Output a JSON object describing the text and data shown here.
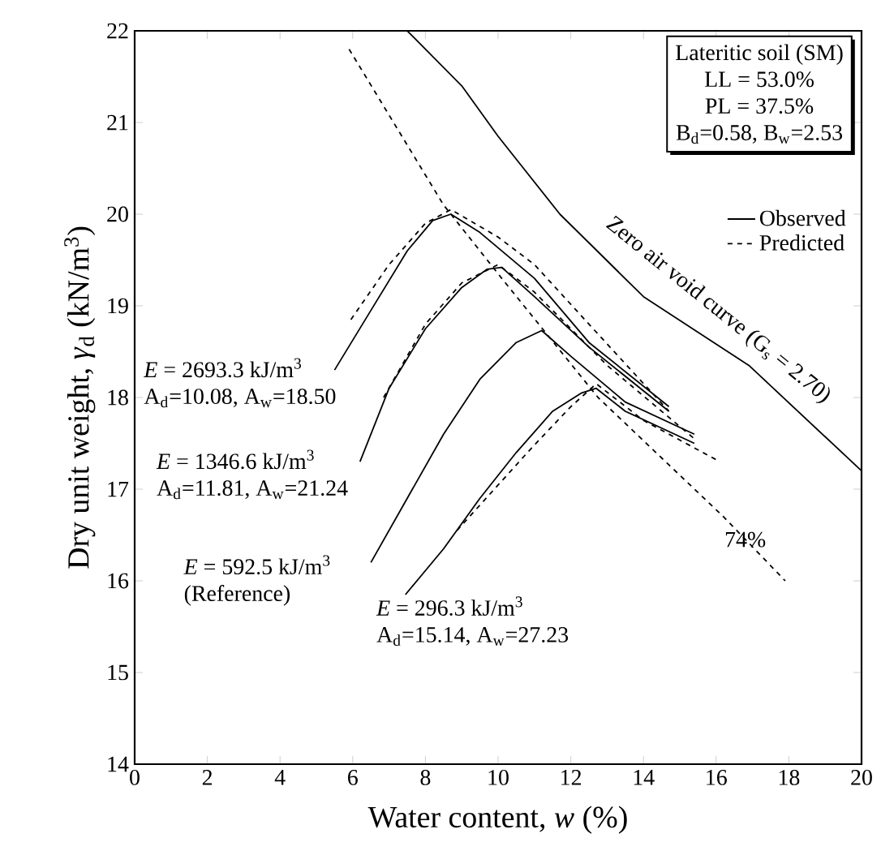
{
  "chart_data": {
    "type": "line",
    "xlabel": "Water content, *w* (%)",
    "ylabel": "Dry unit weight, *γ*$_{d}$ (kN/m$^{3}$)",
    "xlim": [
      0,
      20
    ],
    "ylim": [
      14,
      22
    ],
    "xticks": [
      0,
      2,
      4,
      6,
      8,
      10,
      12,
      14,
      16,
      18,
      20
    ],
    "yticks": [
      14,
      15,
      16,
      17,
      18,
      19,
      20,
      21,
      22
    ],
    "legend": "top right",
    "series": [
      {
        "color": "#000000",
        "line_style": "solid",
        "x": [
          7.5,
          9,
          10,
          11.7,
          14,
          16.9,
          20
        ],
        "values": [
          22.0,
          21.4,
          20.85,
          20.0,
          19.1,
          18.35,
          17.2
        ]
      },
      {
        "color": "#000000",
        "line_style": "dashed",
        "x": [
          5.9,
          8.5,
          10.1,
          12.75,
          16.2,
          17.9
        ],
        "values": [
          21.8,
          20.1,
          19.3,
          18.0,
          16.7,
          16.0
        ]
      },
      {
        "name": "Observed",
        "color": "#000000",
        "line_style": "solid",
        "x": [
          5.5,
          6.5,
          7.5,
          8.2,
          8.7,
          9.5,
          11,
          12.5,
          14.7
        ],
        "values": [
          18.3,
          18.95,
          19.6,
          19.93,
          20.0,
          19.8,
          19.3,
          18.6,
          17.9
        ]
      },
      {
        "color": "#000000",
        "line_style": "solid",
        "x": [
          6.2,
          7,
          8,
          9,
          9.7,
          10.1,
          11,
          12.5,
          14.7
        ],
        "values": [
          17.3,
          18.1,
          18.75,
          19.2,
          19.4,
          19.42,
          19.1,
          18.55,
          17.85
        ]
      },
      {
        "color": "#000000",
        "line_style": "solid",
        "x": [
          6.5,
          7.5,
          8.5,
          9.5,
          10.5,
          11.2,
          12,
          13.5,
          15.4
        ],
        "values": [
          16.2,
          16.9,
          17.6,
          18.2,
          18.6,
          18.73,
          18.45,
          17.95,
          17.6
        ]
      },
      {
        "color": "#000000",
        "line_style": "solid",
        "x": [
          7.45,
          8.5,
          9.5,
          10.5,
          11.5,
          12.3,
          12.7,
          13.5,
          15.4
        ],
        "values": [
          15.85,
          16.35,
          16.9,
          17.4,
          17.85,
          18.05,
          18.1,
          17.85,
          17.5
        ]
      },
      {
        "name": "Predicted",
        "color": "#000000",
        "line_style": "dashed",
        "x": [
          5.95,
          7,
          8,
          8.7,
          10,
          11,
          12.5,
          14.7
        ],
        "values": [
          18.85,
          19.45,
          19.9,
          20.05,
          19.75,
          19.45,
          18.8,
          17.85
        ]
      },
      {
        "color": "#000000",
        "line_style": "dashed",
        "x": [
          6.85,
          8,
          9,
          10,
          11,
          13,
          15.4
        ],
        "values": [
          18.0,
          18.8,
          19.25,
          19.45,
          19.15,
          18.35,
          17.55
        ]
      },
      {
        "color": "#000000",
        "line_style": "dashed",
        "x": [
          8.87,
          10.9,
          12.0,
          12.7,
          14,
          16.1
        ],
        "values": [
          16.55,
          17.44,
          17.9,
          18.15,
          17.75,
          17.3
        ]
      }
    ],
    "annotations": [
      "Lateritic soil (SM)",
      "LL = 53.0%",
      "PL = 37.5%",
      "B$_{d}$=0.58, B$_{w}$=2.53",
      "*E* = 2693.3 kJ/m$^{3}$",
      "A$_{d}$=10.08, A$_{w}$=18.50",
      "*E* = 1346.6 kJ/m$^{3}$",
      "A$_{d}$=11.81, A$_{w}$=21.24",
      "*E* = 592.5 kJ/m$^{3}$",
      "(Reference)",
      "*E* = 296.3 kJ/m$^{3}$",
      "A$_{d}$=15.14, A$_{w}$=27.23",
      "Zero air void curve (G$_{s}$ = 2.70)",
      "74%"
    ]
  }
}
